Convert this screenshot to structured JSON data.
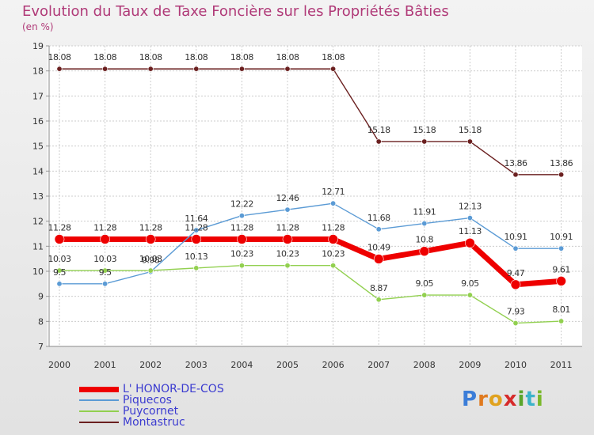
{
  "chart_data": {
    "type": "line",
    "title": "Evolution du Taux de Taxe Foncière sur les Propriétés Bâties",
    "unit_label": "(en %)",
    "categories": [
      "2000",
      "2001",
      "2002",
      "2003",
      "2004",
      "2005",
      "2006",
      "2007",
      "2008",
      "2009",
      "2010",
      "2011"
    ],
    "ylim": [
      7,
      19
    ],
    "yticks": [
      "7",
      "8",
      "9",
      "10",
      "11",
      "12",
      "13",
      "14",
      "15",
      "16",
      "17",
      "18",
      "19"
    ],
    "grid": true,
    "series": [
      {
        "name": "L' HONOR-DE-COS",
        "color": "#ee0000",
        "values": [
          11.28,
          11.28,
          11.28,
          11.28,
          11.28,
          11.28,
          11.28,
          10.49,
          10.8,
          11.13,
          9.47,
          9.61
        ],
        "labels": [
          "11.28",
          "11.28",
          "11.28",
          "11.28",
          "11.28",
          "11.28",
          "11.28",
          "10.49",
          "10.8",
          "11.13",
          "9.47",
          "9.61"
        ]
      },
      {
        "name": "Piquecos",
        "color": "#5b9bd5",
        "values": [
          9.5,
          9.5,
          9.98,
          11.64,
          12.22,
          12.46,
          12.71,
          11.68,
          11.91,
          12.13,
          10.91,
          10.91
        ],
        "labels": [
          "9.5",
          "9.5",
          "9.98",
          "11.64",
          "12.22",
          "12.46",
          "12.71",
          "11.68",
          "11.91",
          "12.13",
          "10.91",
          "10.91"
        ]
      },
      {
        "name": "Puycornet",
        "color": "#92d050",
        "values": [
          10.03,
          10.03,
          10.03,
          10.13,
          10.23,
          10.23,
          10.23,
          8.87,
          9.05,
          9.05,
          7.93,
          8.01
        ],
        "labels": [
          "10.03",
          "10.03",
          "10.03",
          "10.13",
          "10.23",
          "10.23",
          "10.23",
          "8.87",
          "9.05",
          "9.05",
          "7.93",
          "8.01"
        ]
      },
      {
        "name": "Montastruc",
        "color": "#6b2020",
        "values": [
          18.08,
          18.08,
          18.08,
          18.08,
          18.08,
          18.08,
          18.08,
          15.18,
          15.18,
          15.18,
          13.86,
          13.86
        ],
        "labels": [
          "18.08",
          "18.08",
          "18.08",
          "18.08",
          "18.08",
          "18.08",
          "18.08",
          "15.18",
          "15.18",
          "15.18",
          "13.86",
          "13.86"
        ]
      }
    ]
  },
  "logo": {
    "parts": [
      "P",
      "r",
      "o",
      "x",
      "i",
      "t",
      "i"
    ],
    "colors": [
      "#3b7dd8",
      "#e07a1f",
      "#e0a21f",
      "#d62b2b",
      "#5aa52b",
      "#3bb3c9",
      "#7ab82b"
    ]
  }
}
